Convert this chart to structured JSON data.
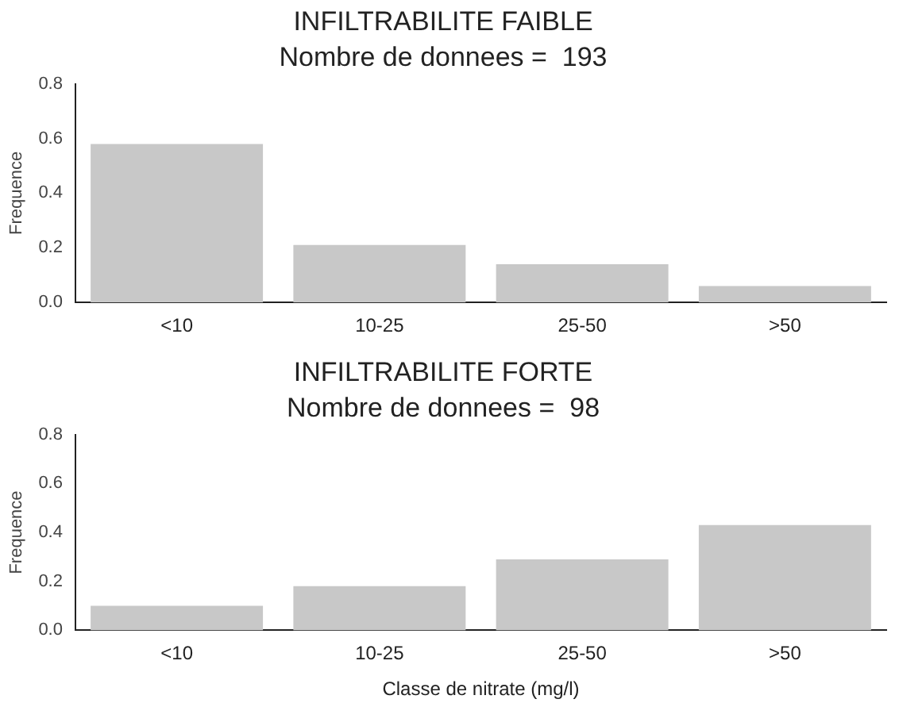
{
  "chart_data": [
    {
      "type": "bar",
      "title": "INFILTRABILITE FAIBLE",
      "subtitle": "Nombre de donnees =  193",
      "ylabel": "Frequence",
      "categories": [
        "<10",
        "10-25",
        "25-50",
        ">50"
      ],
      "values": [
        0.58,
        0.21,
        0.14,
        0.06
      ],
      "color": "#c8c8c8",
      "ylim": [
        0,
        0.8
      ],
      "yticks": [
        {
          "value": 0,
          "label": "0.0"
        },
        {
          "value": 0.2,
          "label": "0.2"
        },
        {
          "value": 0.4,
          "label": "0.4"
        },
        {
          "value": 0.6,
          "label": "0.6"
        },
        {
          "value": 0.8,
          "label": "0.8"
        }
      ],
      "grid": false,
      "legend": false
    },
    {
      "type": "bar",
      "title": "INFILTRABILITE FORTE",
      "subtitle": "Nombre de donnees =  98",
      "xlabel": "Classe de nitrate (mg/l)",
      "ylabel": "Frequence",
      "categories": [
        "<10",
        "10-25",
        "25-50",
        ">50"
      ],
      "values": [
        0.1,
        0.18,
        0.29,
        0.43
      ],
      "color": "#c8c8c8",
      "ylim": [
        0,
        0.8
      ],
      "yticks": [
        {
          "value": 0,
          "label": "0.0"
        },
        {
          "value": 0.2,
          "label": "0.2"
        },
        {
          "value": 0.4,
          "label": "0.4"
        },
        {
          "value": 0.6,
          "label": "0.6"
        },
        {
          "value": 0.8,
          "label": "0.8"
        }
      ],
      "grid": false,
      "legend": false
    }
  ]
}
